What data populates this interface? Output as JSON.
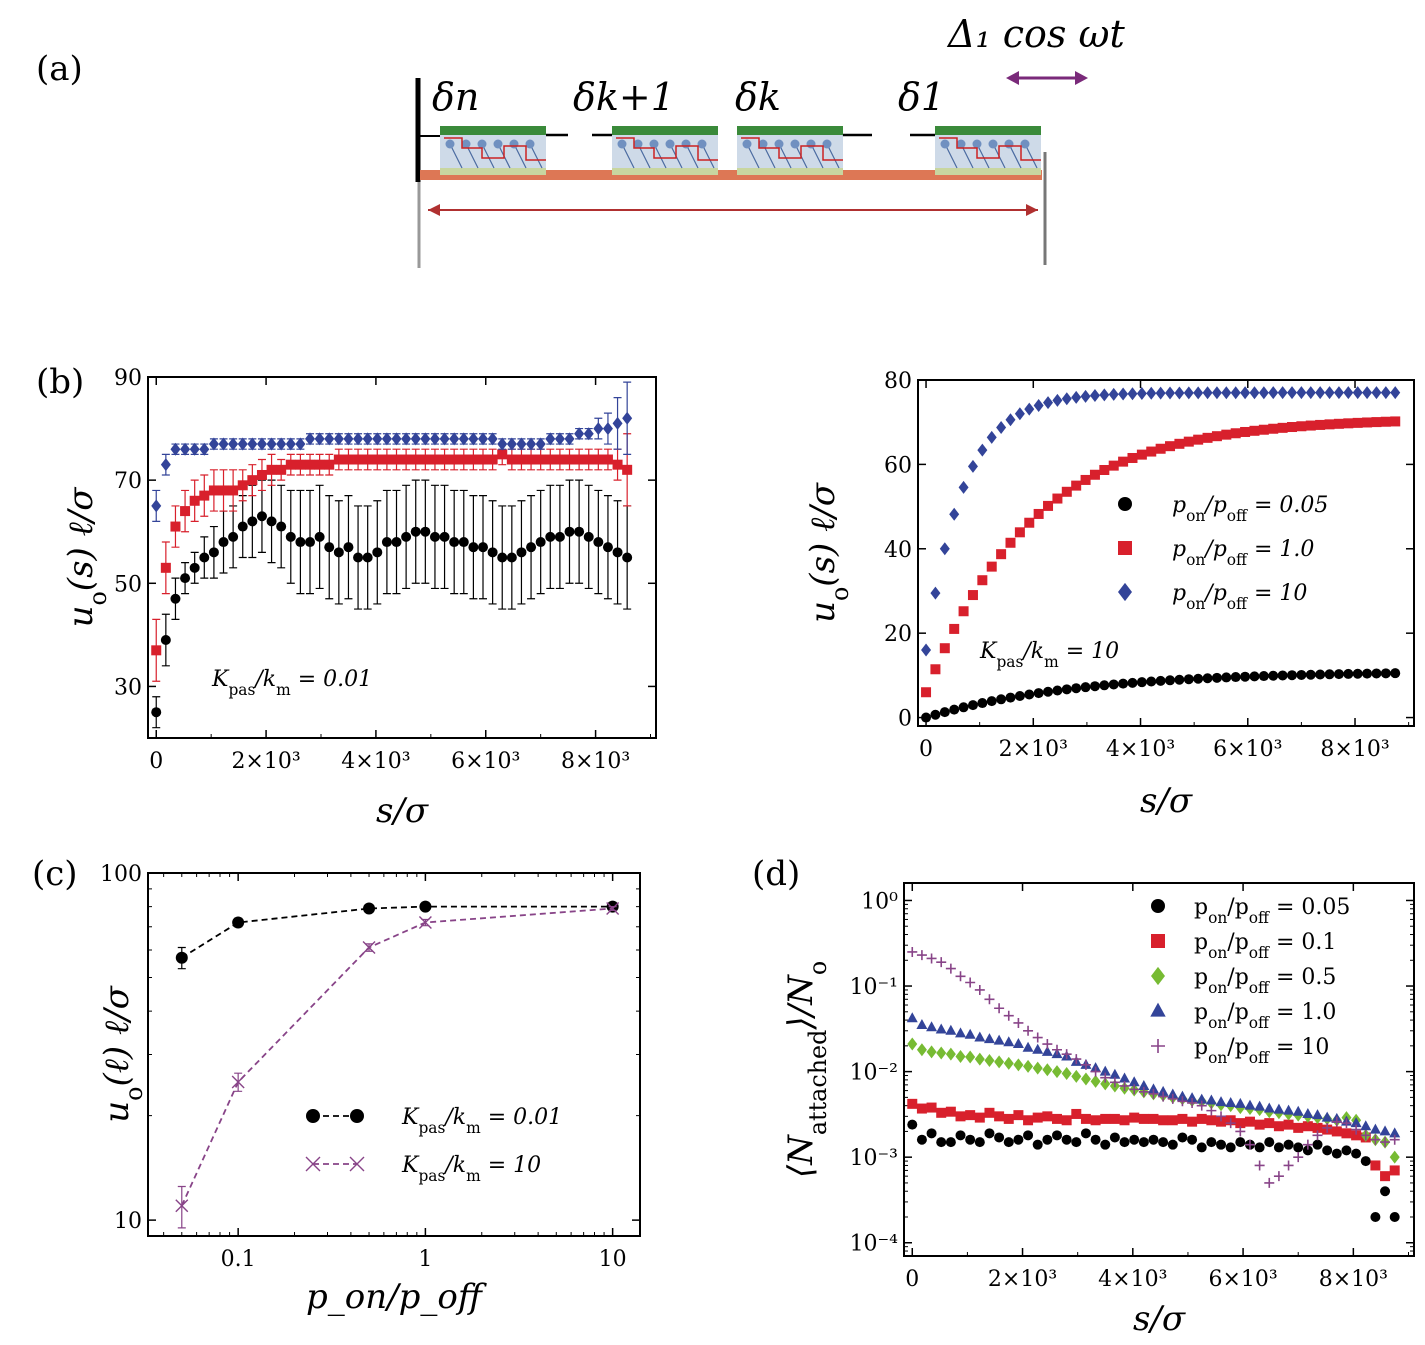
{
  "panel_labels": {
    "a": "(a)",
    "b": "(b)",
    "c": "(c)",
    "d": "(d)"
  },
  "schematic": {
    "drive_label": "Δ₁ cos ωt",
    "labels": [
      "δn",
      "δk+1",
      "δk",
      "δ1"
    ],
    "colors": {
      "head": "#3a8a3a",
      "backbone": "#dd7755",
      "arrow_red": "#b03030",
      "arrow_purple": "#7a2a7a",
      "bead": "#7090c0",
      "box": "#c9d6e6"
    }
  },
  "colors": {
    "black": "#000000",
    "red": "#d8202c",
    "blue": "#334499",
    "green": "#77bb33",
    "purple": "#884488"
  },
  "chart_data": [
    {
      "id": "b_left",
      "type": "scatter",
      "xlabel": "s/σ",
      "ylabel": "u_o(s) ℓ/σ",
      "xlim": [
        -150,
        9100
      ],
      "ylim": [
        20,
        90
      ],
      "xticks": [
        0,
        2000,
        4000,
        6000,
        8000
      ],
      "xticklabels": [
        "0",
        "2×10³",
        "4×10³",
        "6×10³",
        "8×10³"
      ],
      "yticks": [
        30,
        50,
        70,
        90
      ],
      "yticklabels": [
        "30",
        "50",
        "70",
        "90"
      ],
      "annotation": "K_pas/k_m = 0.01",
      "series": [
        {
          "name": "p_on/p_off = 0.05",
          "color": "black",
          "marker": "circle",
          "x0": 0,
          "dx": 175,
          "values": [
            25,
            39,
            47,
            51,
            53,
            55,
            56,
            58,
            59,
            61,
            62,
            63,
            62,
            61,
            59,
            58,
            58,
            59,
            57,
            56,
            57,
            55,
            55,
            56,
            58,
            58,
            59,
            60,
            60,
            59,
            59,
            58,
            58,
            57,
            57,
            56,
            55,
            55,
            56,
            57,
            58,
            59,
            59,
            60,
            60,
            59,
            58,
            57,
            56,
            55
          ],
          "errors": [
            3,
            5,
            4,
            3,
            3,
            4,
            5,
            6,
            6,
            6,
            7,
            7,
            8,
            8,
            9,
            10,
            10,
            10,
            10,
            10,
            10,
            10,
            10,
            10,
            10,
            10,
            10,
            10,
            10,
            10,
            10,
            10,
            10,
            10,
            10,
            10,
            10,
            10,
            10,
            10,
            10,
            10,
            10,
            10,
            10,
            10,
            10,
            10,
            10,
            10
          ]
        },
        {
          "name": "p_on/p_off = 1.0",
          "color": "red",
          "marker": "square",
          "x0": 0,
          "dx": 175,
          "values": [
            37,
            53,
            61,
            64,
            66,
            67,
            68,
            68,
            68,
            69,
            70,
            71,
            72,
            72,
            73,
            73,
            73,
            73,
            73,
            74,
            74,
            74,
            74,
            74,
            74,
            74,
            74,
            74,
            74,
            74,
            74,
            74,
            74,
            74,
            74,
            74,
            75,
            74,
            74,
            74,
            74,
            74,
            74,
            74,
            74,
            74,
            74,
            74,
            73,
            72
          ],
          "errors": [
            6,
            5,
            4,
            4,
            4,
            4,
            4,
            4,
            4,
            3,
            3,
            3,
            3,
            2,
            2,
            2,
            2,
            2,
            2,
            2,
            2,
            2,
            2,
            2,
            2,
            2,
            2,
            2,
            2,
            2,
            2,
            2,
            2,
            2,
            2,
            2,
            2,
            2,
            2,
            2,
            2,
            2,
            2,
            2,
            2,
            2,
            2,
            2,
            3,
            7
          ]
        },
        {
          "name": "p_on/p_off = 10",
          "color": "blue",
          "marker": "diamond",
          "x0": 0,
          "dx": 175,
          "values": [
            65,
            73,
            76,
            76,
            76,
            76,
            77,
            77,
            77,
            77,
            77,
            77,
            77,
            77,
            77,
            77,
            78,
            78,
            78,
            78,
            78,
            78,
            78,
            78,
            78,
            78,
            78,
            78,
            78,
            78,
            78,
            78,
            78,
            78,
            78,
            78,
            77,
            77,
            77,
            77,
            77,
            78,
            78,
            78,
            79,
            79,
            80,
            80,
            81,
            82
          ],
          "errors": [
            3,
            2,
            1,
            1,
            1,
            1,
            1,
            1,
            1,
            1,
            1,
            1,
            1,
            1,
            1,
            1,
            1,
            1,
            1,
            1,
            1,
            1,
            1,
            1,
            1,
            1,
            1,
            1,
            1,
            1,
            1,
            1,
            1,
            1,
            1,
            1,
            1,
            1,
            1,
            1,
            1,
            1,
            1,
            1,
            1,
            1,
            2,
            3,
            5,
            7
          ]
        }
      ]
    },
    {
      "id": "b_right",
      "type": "scatter",
      "xlabel": "s/σ",
      "ylabel": "u_o(s) ℓ/σ",
      "xlim": [
        -150,
        9100
      ],
      "ylim": [
        -2,
        80
      ],
      "xticks": [
        0,
        2000,
        4000,
        6000,
        8000
      ],
      "xticklabels": [
        "0",
        "2×10³",
        "4×10³",
        "6×10³",
        "8×10³"
      ],
      "yticks": [
        0,
        20,
        40,
        60,
        80
      ],
      "yticklabels": [
        "0",
        "20",
        "40",
        "60",
        "80"
      ],
      "annotation": "K_pas/k_m = 10",
      "legend": [
        "p_on/p_off = 0.05",
        "p_on/p_off = 1.0",
        "p_on/p_off = 10"
      ],
      "series": [
        {
          "name": "p_on/p_off = 0.05",
          "color": "black",
          "marker": "circle",
          "func": {
            "a": 11,
            "b": 0,
            "tau": 2800
          },
          "x0": 0,
          "dx": 175,
          "n": 51
        },
        {
          "name": "p_on/p_off = 1.0",
          "color": "red",
          "marker": "square",
          "func": {
            "a": 71,
            "b": 6,
            "tau": 2000
          },
          "x0": 0,
          "dx": 175,
          "n": 51
        },
        {
          "name": "p_on/p_off = 10",
          "color": "blue",
          "marker": "diamond",
          "func": {
            "a": 77,
            "b": 16,
            "tau": 700
          },
          "x0": 0,
          "dx": 175,
          "n": 51
        }
      ]
    },
    {
      "id": "c",
      "type": "line",
      "xscale": "log",
      "yscale": "log",
      "xlabel": "p_on/p_off",
      "ylabel": "u_o(ℓ) ℓ/σ",
      "xlim": [
        0.033,
        14
      ],
      "ylim": [
        9,
        100
      ],
      "xticks": [
        0.1,
        1,
        10
      ],
      "xticklabels": [
        "0.1",
        "1",
        "10"
      ],
      "yticks": [
        10,
        100
      ],
      "yticklabels": [
        "10",
        "100"
      ],
      "legend": [
        "K_pas/k_m = 0.01",
        "K_pas/k_m = 10"
      ],
      "series": [
        {
          "name": "K_pas/k_m = 0.01",
          "color": "black",
          "marker": "circle",
          "x": [
            0.05,
            0.1,
            0.5,
            1,
            10
          ],
          "values": [
            57,
            72,
            79,
            80,
            80
          ],
          "errors": [
            4,
            2,
            1,
            1,
            1
          ]
        },
        {
          "name": "K_pas/k_m = 10",
          "color": "purple",
          "marker": "x",
          "x": [
            0.05,
            0.1,
            0.5,
            1,
            10
          ],
          "values": [
            11,
            25,
            61,
            72,
            79
          ],
          "errors": [
            1.5,
            1.5,
            1.5,
            1.5,
            1
          ]
        }
      ]
    },
    {
      "id": "d",
      "type": "scatter",
      "yscale": "log",
      "xlabel": "s/σ",
      "ylabel": "⟨N_attached⟩/N_o",
      "xlim": [
        -150,
        9100
      ],
      "ylim": [
        7e-05,
        1.6
      ],
      "xticks": [
        0,
        2000,
        4000,
        6000,
        8000
      ],
      "xticklabels": [
        "0",
        "2×10³",
        "4×10³",
        "6×10³",
        "8×10³"
      ],
      "yticks": [
        1,
        0.1,
        0.01,
        0.001,
        0.0001
      ],
      "yticklabels": [
        "10⁰",
        "10⁻¹",
        "10⁻²",
        "10⁻³",
        "10⁻⁴"
      ],
      "legend": [
        "p_on/p_off = 0.05",
        "p_on/p_off = 0.1",
        "p_on/p_off = 0.5",
        "p_on/p_off = 1.0",
        "p_on/p_off = 10"
      ],
      "series": [
        {
          "name": "p_on/p_off = 0.05",
          "color": "black",
          "marker": "circle",
          "x0": 0,
          "dx": 175,
          "values": [
            0.0024,
            0.0016,
            0.0019,
            0.0015,
            0.0015,
            0.0018,
            0.0016,
            0.0015,
            0.0019,
            0.0017,
            0.0015,
            0.0016,
            0.0018,
            0.0014,
            0.0016,
            0.0018,
            0.0016,
            0.0015,
            0.0019,
            0.0016,
            0.0014,
            0.0017,
            0.0015,
            0.0016,
            0.0015,
            0.0016,
            0.0015,
            0.0014,
            0.0017,
            0.0016,
            0.0013,
            0.0015,
            0.0014,
            0.0013,
            0.0015,
            0.0014,
            0.0013,
            0.0015,
            0.0013,
            0.0014,
            0.0013,
            0.0012,
            0.0014,
            0.0012,
            0.0011,
            0.0012,
            0.0011,
            0.0009,
            0.0002,
            0.0004,
            0.0002
          ]
        },
        {
          "name": "p_on/p_off = 0.1",
          "color": "red",
          "marker": "square",
          "x0": 0,
          "dx": 175,
          "values": [
            0.0042,
            0.0037,
            0.0038,
            0.0033,
            0.0034,
            0.003,
            0.0031,
            0.0029,
            0.0033,
            0.003,
            0.0028,
            0.0031,
            0.0027,
            0.0029,
            0.003,
            0.0028,
            0.0027,
            0.0032,
            0.0028,
            0.0027,
            0.0028,
            0.0028,
            0.0027,
            0.0029,
            0.0028,
            0.0028,
            0.0027,
            0.0027,
            0.0028,
            0.0026,
            0.0028,
            0.0027,
            0.0026,
            0.0027,
            0.0025,
            0.0026,
            0.0024,
            0.0025,
            0.0023,
            0.0024,
            0.0022,
            0.0023,
            0.0022,
            0.0021,
            0.002,
            0.0019,
            0.0018,
            0.0017,
            0.0008,
            0.0006,
            0.0007
          ]
        },
        {
          "name": "p_on/p_off = 0.5",
          "color": "green",
          "marker": "diamond",
          "x0": 0,
          "dx": 175,
          "values": [
            0.021,
            0.018,
            0.017,
            0.0165,
            0.016,
            0.015,
            0.0148,
            0.014,
            0.0135,
            0.013,
            0.0125,
            0.012,
            0.0115,
            0.011,
            0.0105,
            0.01,
            0.0095,
            0.0088,
            0.0082,
            0.0077,
            0.0072,
            0.0068,
            0.0064,
            0.0061,
            0.0058,
            0.0055,
            0.0053,
            0.005,
            0.0048,
            0.0046,
            0.0045,
            0.0043,
            0.0041,
            0.004,
            0.0038,
            0.0037,
            0.0036,
            0.0034,
            0.0033,
            0.0032,
            0.0031,
            0.003,
            0.0029,
            0.0028,
            0.0027,
            0.0029,
            0.0027,
            0.0018,
            0.0016,
            0.0015,
            0.001
          ]
        },
        {
          "name": "p_on/p_off = 1.0",
          "color": "blue",
          "marker": "triangle",
          "x0": 0,
          "dx": 175,
          "values": [
            0.042,
            0.035,
            0.033,
            0.031,
            0.03,
            0.028,
            0.027,
            0.025,
            0.024,
            0.023,
            0.022,
            0.021,
            0.019,
            0.018,
            0.017,
            0.016,
            0.015,
            0.013,
            0.012,
            0.011,
            0.01,
            0.0092,
            0.0083,
            0.0075,
            0.0068,
            0.0062,
            0.0058,
            0.0054,
            0.0051,
            0.0049,
            0.0047,
            0.0046,
            0.0044,
            0.0043,
            0.0042,
            0.004,
            0.0039,
            0.0037,
            0.0036,
            0.0035,
            0.0034,
            0.0032,
            0.0031,
            0.0029,
            0.0028,
            0.0026,
            0.0025,
            0.0023,
            0.0021,
            0.002,
            0.0019
          ]
        },
        {
          "name": "p_on/p_off = 10",
          "color": "purple",
          "marker": "plus",
          "x": [
            0,
            175,
            350,
            525,
            700,
            875,
            1050,
            1225,
            1400,
            1575,
            1750,
            1925,
            2100,
            2275,
            2450,
            2625,
            2800,
            2975,
            3150,
            3325,
            3500,
            3675,
            3850,
            4025,
            4200,
            4375,
            4550,
            4725,
            4900,
            5075,
            5250,
            5425,
            5600,
            5775,
            5950,
            6125,
            6300,
            6475,
            6650,
            6825,
            7000,
            7175,
            7350,
            7525,
            7700,
            7875,
            8050,
            8225,
            8400,
            8575,
            8750
          ],
          "values": [
            0.25,
            0.23,
            0.21,
            0.19,
            0.16,
            0.13,
            0.11,
            0.09,
            0.07,
            0.055,
            0.045,
            0.037,
            0.03,
            0.025,
            0.021,
            0.018,
            0.016,
            0.014,
            0.012,
            0.01,
            0.0085,
            0.0075,
            0.0068,
            0.0062,
            0.0058,
            0.0055,
            0.0051,
            0.0048,
            0.0045,
            0.0043,
            0.004,
            0.0035,
            0.003,
            0.0025,
            0.002,
            0.0014,
            0.0008,
            0.0005,
            0.0006,
            0.0008,
            0.001,
            0.0014,
            0.0018,
            0.0022,
            0.0026,
            0.0025,
            0.0021,
            0.0018,
            0.0016,
            0.0015,
            0.0016
          ]
        }
      ]
    }
  ]
}
